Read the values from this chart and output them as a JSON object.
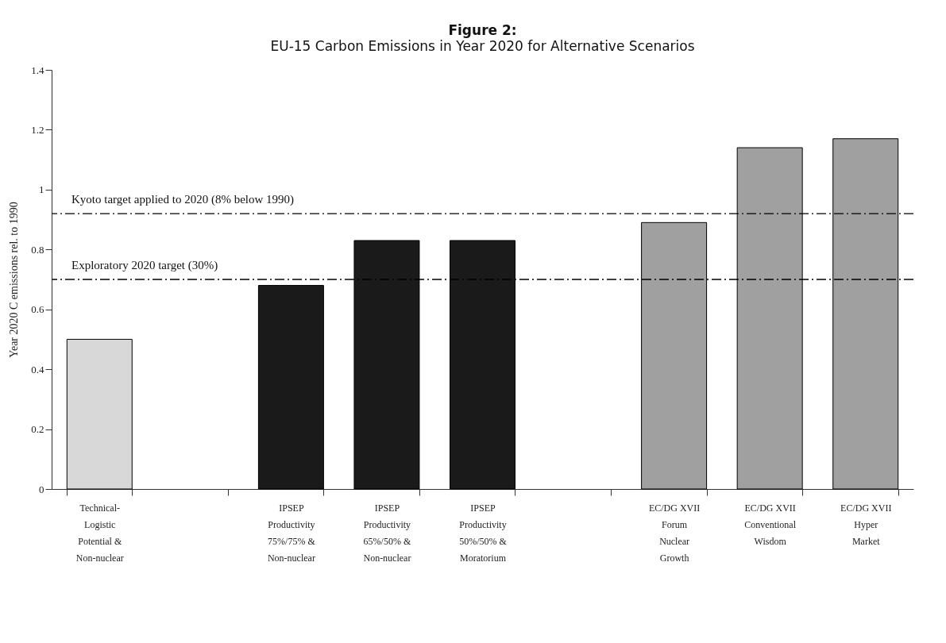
{
  "chart_data": {
    "type": "bar",
    "title": "Figure 2:",
    "subtitle": "EU-15 Carbon Emissions in Year 2020 for Alternative Scenarios",
    "ylabel": "Year 2020 C emissions rel. to 1990",
    "categories": [
      "Technical-\nLogistic\nPotential &\nNon-nuclear",
      null,
      "IPSEP\nProductivity\n75%/75% &\nNon-nuclear",
      "IPSEP\nProductivity\n65%/50% &\nNon-nuclear",
      "IPSEP\nProductivity\n50%/50% &\nMoratorium",
      null,
      "EC/DG XVII\nForum\nNuclear\nGrowth",
      "EC/DG XVII\nConventional\nWisdom",
      "EC/DG XVII\nHyper\nMarket"
    ],
    "values": [
      0.5,
      null,
      0.68,
      0.83,
      0.83,
      null,
      0.89,
      1.14,
      1.17
    ],
    "colors": [
      "#d8d8d8",
      null,
      "#1a1a1a",
      "#1a1a1a",
      "#1a1a1a",
      null,
      "#a0a0a0",
      "#a0a0a0",
      "#a0a0a0"
    ],
    "ylim": [
      0,
      1.4
    ],
    "yticks": [
      0,
      0.2,
      0.4,
      0.6,
      0.8,
      1,
      1.2,
      1.4
    ],
    "grid": false,
    "ref_lines": [
      {
        "axis": "y",
        "value": 0.92,
        "label": "Kyoto target applied to 2020 (8% below 1990)",
        "color": "#000000",
        "line_style": "dashed"
      },
      {
        "axis": "y",
        "value": 0.7,
        "label": "Exploratory 2020 target (30%)",
        "color": "#000000",
        "line_style": "dashed"
      }
    ]
  }
}
